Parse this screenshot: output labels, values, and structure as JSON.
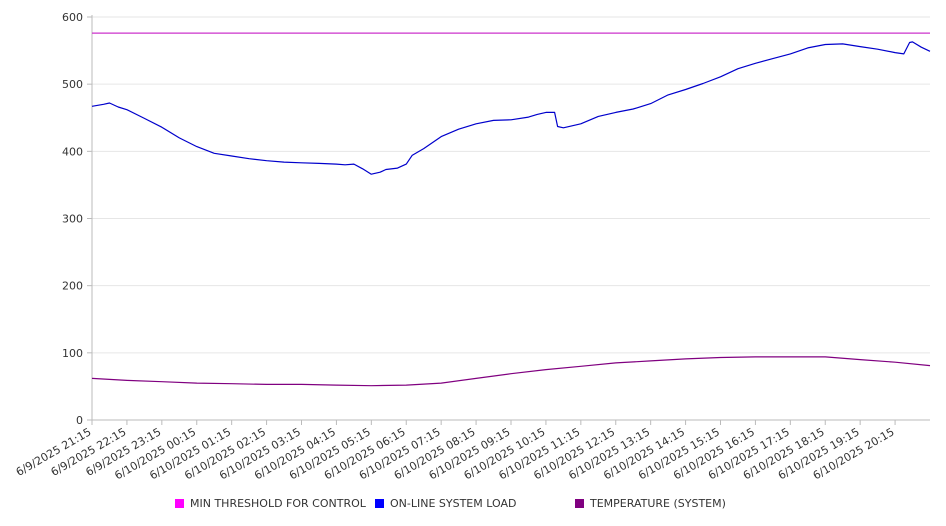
{
  "chart_data": {
    "type": "line",
    "title": "",
    "xlabel": "",
    "ylabel": "",
    "ylim": [
      0,
      600
    ],
    "yticks": [
      0,
      100,
      200,
      300,
      400,
      500,
      600
    ],
    "grid": true,
    "legend_position": "bottom",
    "x_tick_labels": [
      "6/9/2025 21:15",
      "6/9/2025 22:15",
      "6/9/2025 23:15",
      "6/10/2025 00:15",
      "6/10/2025 01:15",
      "6/10/2025 02:15",
      "6/10/2025 03:15",
      "6/10/2025 04:15",
      "6/10/2025 05:15",
      "6/10/2025 06:15",
      "6/10/2025 07:15",
      "6/10/2025 08:15",
      "6/10/2025 09:15",
      "6/10/2025 10:15",
      "6/10/2025 11:15",
      "6/10/2025 12:15",
      "6/10/2025 13:15",
      "6/10/2025 14:15",
      "6/10/2025 15:15",
      "6/10/2025 16:15",
      "6/10/2025 17:15",
      "6/10/2025 18:15",
      "6/10/2025 19:15",
      "6/10/2025 20:15"
    ],
    "x_start": "6/9/2025 21:15",
    "x_end": "6/10/2025 21:15",
    "series": [
      {
        "name": "MIN THRESHOLD FOR CONTROL",
        "color": "#cc33cc",
        "points": [
          [
            "6/9/2025 21:15",
            576
          ],
          [
            "6/10/2025 21:15",
            576
          ]
        ]
      },
      {
        "name": "ON-LINE SYSTEM LOAD",
        "color": "#0000cc",
        "points": [
          [
            "6/9/2025 21:15",
            467
          ],
          [
            "6/9/2025 21:35",
            470
          ],
          [
            "6/9/2025 21:45",
            472
          ],
          [
            "6/9/2025 22:00",
            466
          ],
          [
            "6/9/2025 22:15",
            462
          ],
          [
            "6/9/2025 22:45",
            449
          ],
          [
            "6/9/2025 23:15",
            436
          ],
          [
            "6/9/2025 23:45",
            420
          ],
          [
            "6/10/2025 00:15",
            407
          ],
          [
            "6/10/2025 00:45",
            397
          ],
          [
            "6/10/2025 01:15",
            393
          ],
          [
            "6/10/2025 01:45",
            389
          ],
          [
            "6/10/2025 02:15",
            386
          ],
          [
            "6/10/2025 02:45",
            384
          ],
          [
            "6/10/2025 03:15",
            383
          ],
          [
            "6/10/2025 03:45",
            382
          ],
          [
            "6/10/2025 04:15",
            381
          ],
          [
            "6/10/2025 04:30",
            380
          ],
          [
            "6/10/2025 04:45",
            381
          ],
          [
            "6/10/2025 05:00",
            374
          ],
          [
            "6/10/2025 05:15",
            366
          ],
          [
            "6/10/2025 05:30",
            369
          ],
          [
            "6/10/2025 05:40",
            373
          ],
          [
            "6/10/2025 06:00",
            375
          ],
          [
            "6/10/2025 06:15",
            381
          ],
          [
            "6/10/2025 06:25",
            394
          ],
          [
            "6/10/2025 06:45",
            404
          ],
          [
            "6/10/2025 07:15",
            422
          ],
          [
            "6/10/2025 07:45",
            433
          ],
          [
            "6/10/2025 08:15",
            441
          ],
          [
            "6/10/2025 08:45",
            446
          ],
          [
            "6/10/2025 09:15",
            447
          ],
          [
            "6/10/2025 09:45",
            451
          ],
          [
            "6/10/2025 10:00",
            455
          ],
          [
            "6/10/2025 10:15",
            458
          ],
          [
            "6/10/2025 10:30",
            458
          ],
          [
            "6/10/2025 10:35",
            437
          ],
          [
            "6/10/2025 10:45",
            435
          ],
          [
            "6/10/2025 11:15",
            441
          ],
          [
            "6/10/2025 11:45",
            452
          ],
          [
            "6/10/2025 12:15",
            458
          ],
          [
            "6/10/2025 12:45",
            463
          ],
          [
            "6/10/2025 13:15",
            471
          ],
          [
            "6/10/2025 13:45",
            484
          ],
          [
            "6/10/2025 14:15",
            492
          ],
          [
            "6/10/2025 14:45",
            501
          ],
          [
            "6/10/2025 15:15",
            511
          ],
          [
            "6/10/2025 15:45",
            523
          ],
          [
            "6/10/2025 16:15",
            531
          ],
          [
            "6/10/2025 16:45",
            538
          ],
          [
            "6/10/2025 17:15",
            545
          ],
          [
            "6/10/2025 17:45",
            554
          ],
          [
            "6/10/2025 18:15",
            559
          ],
          [
            "6/10/2025 18:45",
            560
          ],
          [
            "6/10/2025 19:15",
            556
          ],
          [
            "6/10/2025 19:45",
            552
          ],
          [
            "6/10/2025 20:15",
            547
          ],
          [
            "6/10/2025 20:30",
            545
          ],
          [
            "6/10/2025 20:40",
            562
          ],
          [
            "6/10/2025 20:45",
            563
          ],
          [
            "6/10/2025 21:00",
            555
          ],
          [
            "6/10/2025 21:15",
            549
          ]
        ]
      },
      {
        "name": "TEMPERATURE (SYSTEM)",
        "color": "#800080",
        "points": [
          [
            "6/9/2025 21:15",
            62
          ],
          [
            "6/9/2025 22:15",
            59
          ],
          [
            "6/9/2025 23:15",
            57
          ],
          [
            "6/10/2025 00:15",
            55
          ],
          [
            "6/10/2025 01:15",
            54
          ],
          [
            "6/10/2025 02:15",
            53
          ],
          [
            "6/10/2025 03:15",
            53
          ],
          [
            "6/10/2025 04:15",
            52
          ],
          [
            "6/10/2025 05:15",
            51
          ],
          [
            "6/10/2025 06:15",
            52
          ],
          [
            "6/10/2025 07:15",
            55
          ],
          [
            "6/10/2025 08:15",
            62
          ],
          [
            "6/10/2025 09:15",
            69
          ],
          [
            "6/10/2025 10:15",
            75
          ],
          [
            "6/10/2025 11:15",
            80
          ],
          [
            "6/10/2025 12:15",
            85
          ],
          [
            "6/10/2025 13:15",
            88
          ],
          [
            "6/10/2025 14:15",
            91
          ],
          [
            "6/10/2025 15:15",
            93
          ],
          [
            "6/10/2025 16:15",
            94
          ],
          [
            "6/10/2025 17:15",
            94
          ],
          [
            "6/10/2025 18:15",
            94
          ],
          [
            "6/10/2025 19:15",
            90
          ],
          [
            "6/10/2025 20:15",
            86
          ],
          [
            "6/10/2025 21:15",
            81
          ]
        ]
      }
    ]
  }
}
